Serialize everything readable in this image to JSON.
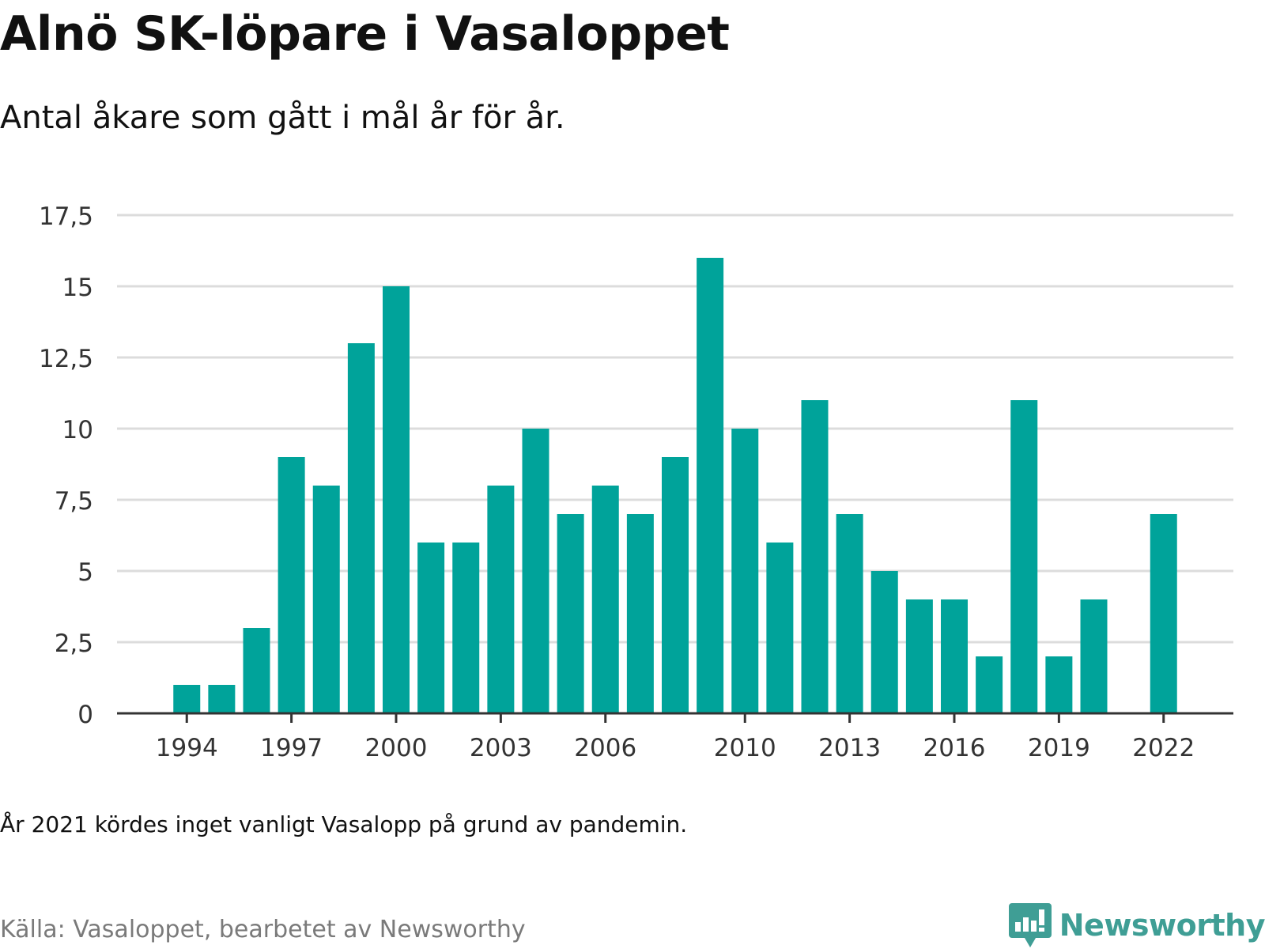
{
  "header": {
    "title": "Alnö SK-löpare i Vasaloppet",
    "subtitle": "Antal åkare som gått i mål år för år."
  },
  "footer": {
    "note": "År 2021 kördes inget vanligt Vasalopp på grund av pandemin.",
    "source": "Källa: Vasaloppet, bearbetet av Newsworthy",
    "brand": "Newsworthy",
    "brand_icon": "newsworthy-logo-icon"
  },
  "colors": {
    "bar": "#00a39a",
    "grid": "#dcdcdc",
    "axis": "#333333",
    "text": "#333333",
    "brand": "#3f9e95"
  },
  "chart_data": {
    "type": "bar",
    "title": "Alnö SK-löpare i Vasaloppet",
    "subtitle": "Antal åkare som gått i mål år för år.",
    "x": [
      1994,
      1995,
      1996,
      1997,
      1998,
      1999,
      2000,
      2001,
      2002,
      2003,
      2004,
      2005,
      2006,
      2007,
      2008,
      2009,
      2010,
      2011,
      2012,
      2013,
      2014,
      2015,
      2016,
      2017,
      2018,
      2019,
      2020,
      2022
    ],
    "values": [
      1,
      1,
      3,
      9,
      8,
      13,
      15,
      6,
      6,
      8,
      10,
      7,
      8,
      7,
      9,
      16,
      10,
      6,
      11,
      7,
      5,
      4,
      4,
      2,
      11,
      2,
      4,
      7
    ],
    "xlim": [
      1992,
      2024
    ],
    "x_ticks": [
      1994,
      1997,
      2000,
      2003,
      2006,
      2010,
      2013,
      2016,
      2019,
      2022
    ],
    "x_tick_labels": [
      "1994",
      "1997",
      "2000",
      "2003",
      "2006",
      "2010",
      "2013",
      "2016",
      "2019",
      "2022"
    ],
    "ylim": [
      0,
      17.5
    ],
    "y_ticks": [
      0,
      2.5,
      5,
      7.5,
      10,
      12.5,
      15,
      17.5
    ],
    "y_tick_labels": [
      "0",
      "2,5",
      "5",
      "7,5",
      "10",
      "12,5",
      "15",
      "17,5"
    ],
    "xlabel": "",
    "ylabel": "",
    "grid": true,
    "legend": "none"
  }
}
